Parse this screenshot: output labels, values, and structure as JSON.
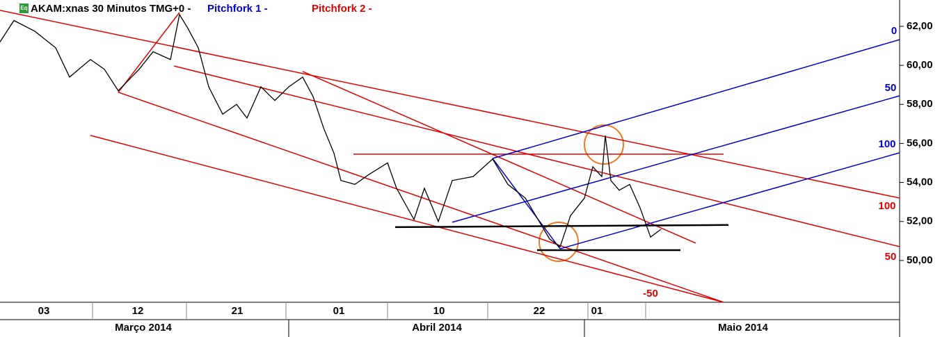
{
  "chart_data": {
    "type": "line",
    "title": "AKAM:xnas 30 Minutos TMG+0 -",
    "icon_label": "Eq",
    "legend": [
      {
        "name": "Pitchfork 1 -",
        "color": "#0000cc"
      },
      {
        "name": "Pitchfork 2 -",
        "color": "#e00000"
      }
    ],
    "xlim": [
      0,
      1293
    ],
    "ylim": [
      47.86,
      63.35
    ],
    "yticks": [
      {
        "value": 50,
        "label": "50,00"
      },
      {
        "value": 52,
        "label": "52,00"
      },
      {
        "value": 54,
        "label": "54,00"
      },
      {
        "value": 56,
        "label": "56,00"
      },
      {
        "value": 58,
        "label": "58,00"
      },
      {
        "value": 60,
        "label": "60,00"
      },
      {
        "value": 62,
        "label": "62,00"
      }
    ],
    "xticks": [
      {
        "value": 63,
        "label": "03"
      },
      {
        "value": 198,
        "label": "12"
      },
      {
        "value": 341,
        "label": "21"
      },
      {
        "value": 487,
        "label": "01"
      },
      {
        "value": 631,
        "label": "10"
      },
      {
        "value": 775,
        "label": "22"
      },
      {
        "value": 858,
        "label": "01"
      }
    ],
    "months": [
      {
        "value": 206,
        "label": "Março 2014"
      },
      {
        "value": 628,
        "label": "Abril 2014"
      },
      {
        "value": 1068,
        "label": "Maio 2014"
      }
    ],
    "x": [
      0,
      20,
      50,
      80,
      100,
      130,
      150,
      170,
      200,
      220,
      245,
      258,
      270,
      285,
      300,
      320,
      340,
      355,
      375,
      395,
      415,
      435,
      450,
      465,
      480,
      490,
      510,
      530,
      557,
      570,
      595,
      610,
      630,
      650,
      680,
      708,
      730,
      755,
      770,
      790,
      805,
      820,
      840,
      852,
      865,
      870,
      878,
      890,
      905,
      920,
      935,
      950
    ],
    "series": [
      {
        "color": "#000000",
        "values": [
          61.2,
          62.3,
          61.75,
          60.9,
          59.4,
          60.3,
          59.8,
          58.7,
          59.8,
          60.7,
          60.3,
          62.6,
          61.9,
          60.9,
          58.9,
          57.5,
          58.0,
          57.3,
          58.9,
          58.2,
          58.9,
          59.4,
          58.4,
          56.8,
          55.5,
          54.1,
          53.9,
          54.4,
          55.0,
          53.7,
          52.1,
          53.7,
          52.0,
          54.1,
          54.3,
          55.2,
          53.9,
          53.2,
          52.3,
          51.1,
          50.7,
          52.3,
          53.2,
          54.8,
          54.3,
          56.4,
          54.1,
          53.6,
          53.9,
          52.7,
          51.2,
          51.6
        ]
      }
    ],
    "lines": [
      {
        "color": "#e00000",
        "x1": 0,
        "y1": 62.82,
        "x2": 1293,
        "y2": 53.2
      },
      {
        "color": "#e00000",
        "x1": 250,
        "y1": 59.97,
        "x2": 1293,
        "y2": 50.71
      },
      {
        "color": "#e00000",
        "x1": 170,
        "y1": 58.62,
        "x2": 1040,
        "y2": 47.86
      },
      {
        "color": "#e00000",
        "x1": 130,
        "y1": 56.41,
        "x2": 1040,
        "y2": 47.86
      },
      {
        "color": "#e00000",
        "x1": 170,
        "y1": 58.62,
        "x2": 258,
        "y2": 62.71
      },
      {
        "color": "#e00000",
        "x1": 435,
        "y1": 59.69,
        "x2": 1000,
        "y2": 50.89
      },
      {
        "color": "#e00000",
        "x1": 508,
        "y1": 55.45,
        "x2": 1040,
        "y2": 55.45
      },
      {
        "color": "#0000cc",
        "x1": 708,
        "y1": 55.23,
        "x2": 1293,
        "y2": 61.32
      },
      {
        "color": "#0000cc",
        "x1": 650,
        "y1": 51.96,
        "x2": 1293,
        "y2": 58.44
      },
      {
        "color": "#0000cc",
        "x1": 805,
        "y1": 50.6,
        "x2": 1293,
        "y2": 55.52
      },
      {
        "color": "#0000cc",
        "x1": 708,
        "y1": 55.23,
        "x2": 805,
        "y2": 50.6
      },
      {
        "color": "#000000",
        "x1": 568,
        "y1": 51.71,
        "x2": 1047,
        "y2": 51.82
      },
      {
        "color": "#000000",
        "x1": 772,
        "y1": 50.53,
        "x2": 978,
        "y2": 50.53
      }
    ],
    "annotations": [
      {
        "text": "0",
        "color": "#0000cc",
        "x": 1285,
        "y": 61.75
      },
      {
        "text": "50",
        "color": "#0000cc",
        "x": 1280,
        "y": 58.83
      },
      {
        "text": "100",
        "color": "#0000cc",
        "x": 1275,
        "y": 55.95
      },
      {
        "text": "100",
        "color": "#e00000",
        "x": 1275,
        "y": 52.78
      },
      {
        "text": "50",
        "color": "#e00000",
        "x": 1280,
        "y": 50.18
      },
      {
        "text": "-50",
        "color": "#e00000",
        "x": 935,
        "y": 48.29
      }
    ]
  }
}
